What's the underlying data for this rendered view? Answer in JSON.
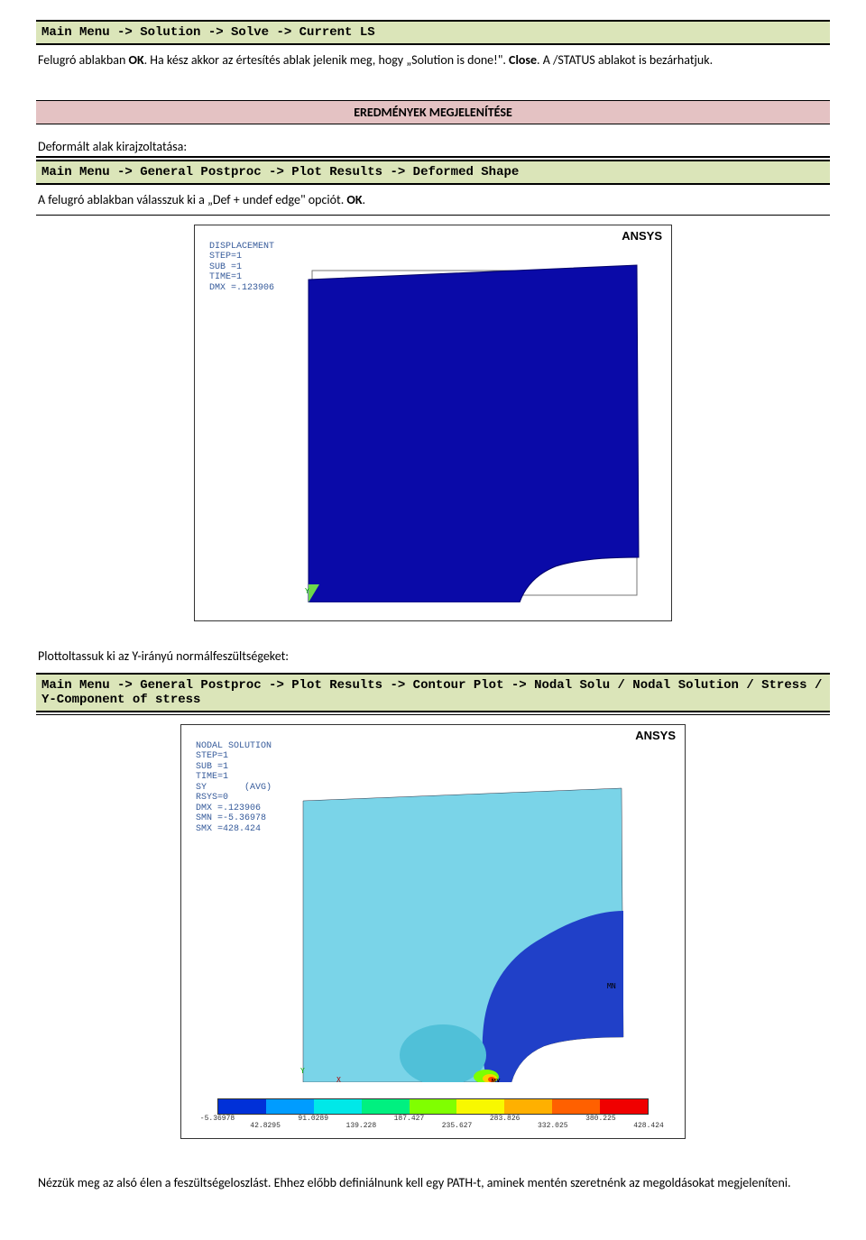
{
  "path1": "Main Menu -> Solution -> Solve -> Current LS",
  "para1_a": "Felugró ablakban ",
  "para1_b": "OK",
  "para1_c": ". Ha kész akkor az értesítés ablak jelenik meg, hogy „Solution is done!\". ",
  "para1_d": "Close",
  "para1_e": ". A /STATUS ablakot is bezárhatjuk.",
  "section_title": "EREDMÉNYEK MEGJELENÍTÉSE",
  "sub1": "Deformált alak kirajzoltatása:",
  "path2": "Main Menu -> General Postproc -> Plot Results -> Deformed Shape",
  "para2_a": "A felugró ablakban válasszuk ki a „Def + undef edge\" opciót. ",
  "para2_b": "OK",
  "para2_c": ".",
  "ansys_label": "ANSYS",
  "info1": "DISPLACEMENT\nSTEP=1\nSUB =1\nTIME=1\nDMX =.123906",
  "info2": "NODAL SOLUTION\nSTEP=1\nSUB =1\nTIME=1\nSY       (AVG)\nRSYS=0\nDMX =.123906\nSMN =-5.36978\nSMX =428.424",
  "sub2": "Plottoltassuk ki az Y-irányú normálfeszültségeket:",
  "path3": "Main Menu -> General Postproc -> Plot Results -> Contour Plot -> Nodal Solu / Nodal Solution / Stress / Y-Component of stress",
  "para3": "Nézzük meg az alsó élen a feszültségeloszlást. Ehhez előbb definiálnunk kell egy PATH-t, aminek mentén szeretnénk az megoldásokat megjeleníteni.",
  "colorbar_colors": [
    "#0030d8",
    "#009cff",
    "#00e8e8",
    "#00f080",
    "#80ff00",
    "#f8f800",
    "#ffb000",
    "#ff6000",
    "#f00000"
  ],
  "ticks": [
    "-5.36978",
    "42.8295",
    "91.0289",
    "139.228",
    "187.427",
    "235.627",
    "283.826",
    "332.025",
    "380.225",
    "428.424"
  ],
  "chart1": {
    "deformed_fill": "#0a0aa8",
    "undef_stroke": "#666"
  },
  "chart2": {
    "bg_fill": "#7ad4e8",
    "blob_fill": "#2040c8",
    "mid_fill": "#50c0d8"
  },
  "mn_label": "MN",
  "mx_label": "MX"
}
